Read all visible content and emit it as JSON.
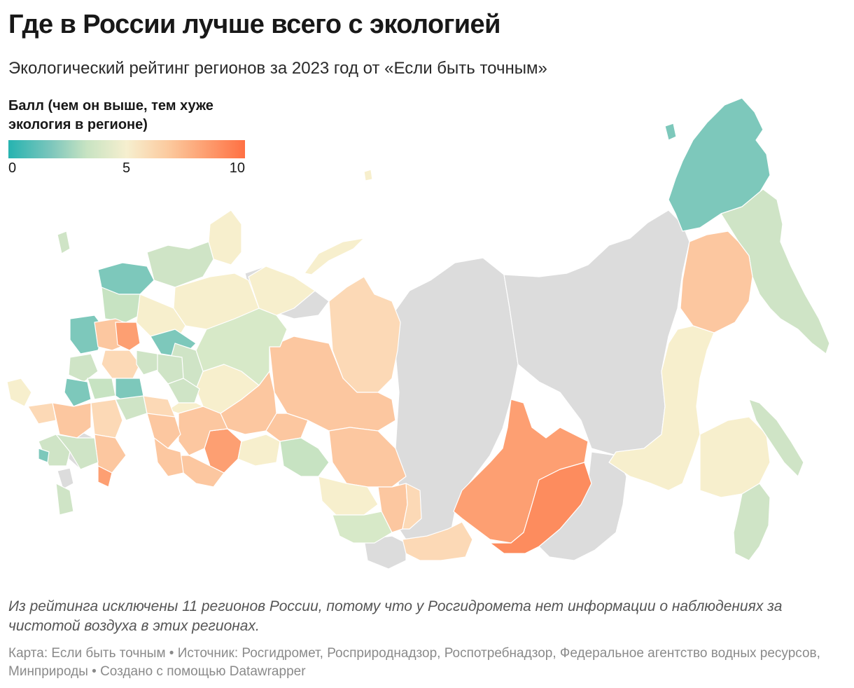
{
  "title": "Где в России лучше всего с экологией",
  "subtitle": "Экологический рейтинг регионов за 2023 год от «Если быть точным»",
  "legend": {
    "title": "Балл (чем он выше, тем хуже экология в регионе)",
    "ticks": [
      "0",
      "5",
      "10"
    ],
    "range": [
      0,
      10
    ],
    "colors": [
      "#26b3b0",
      "#7cc6bc",
      "#c7e3c2",
      "#f6efcf",
      "#fcc99d",
      "#fd9a6c",
      "#ff7043"
    ]
  },
  "map": {
    "no_data_color": "#dcdcdc",
    "region_colors": {
      "teal": "#7dc8bb",
      "light_green": "#cfe4c6",
      "pale_yellow": "#f7efcd",
      "peach": "#fcc7a0",
      "orange": "#fd9f72",
      "deep_orange": "#fd8c5e"
    }
  },
  "note": "Из рейтинга исключены 11 регионов России, потому что у Росгидромета нет информации о наблюдениях за чистотой воздуха в этих регионах.",
  "source": "Карта: Если быть точным • Источник: Росгидромет, Росприроднадзор, Роспотребнадзор, Федеральное агентство водных ресурсов, Минприроды • Создано с помощью Datawrapper"
}
